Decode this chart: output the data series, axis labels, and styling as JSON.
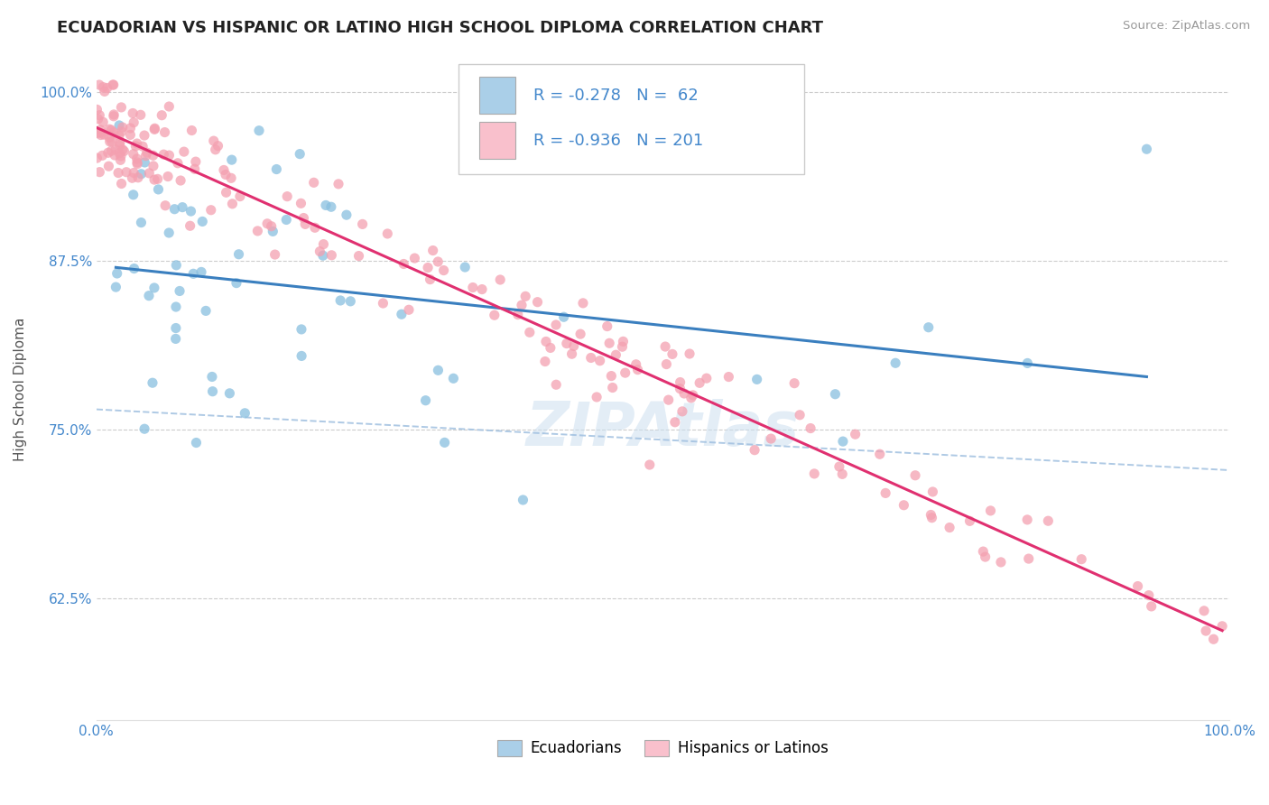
{
  "title": "ECUADORIAN VS HISPANIC OR LATINO HIGH SCHOOL DIPLOMA CORRELATION CHART",
  "source_text": "Source: ZipAtlas.com",
  "ylabel": "High School Diploma",
  "watermark": "ZIPAtlas",
  "legend_label1": "Ecuadorians",
  "legend_label2": "Hispanics or Latinos",
  "r1": -0.278,
  "n1": 62,
  "r2": -0.936,
  "n2": 201,
  "color1": "#89bfdf",
  "color2": "#f4a0b0",
  "color1_fill": "#aacfe8",
  "color2_fill": "#f9c0cc",
  "line_color1": "#3a7fbf",
  "line_color2": "#e03070",
  "dash_color": "#a0c0e0",
  "xmin": 0.0,
  "xmax": 1.0,
  "ymin": 0.535,
  "ymax": 1.025,
  "yticks": [
    0.625,
    0.75,
    0.875,
    1.0
  ],
  "ytick_labels": [
    "62.5%",
    "75.0%",
    "87.5%",
    "100.0%"
  ],
  "xticks": [
    0.0,
    0.25,
    0.5,
    0.75,
    1.0
  ],
  "title_fontsize": 13,
  "axis_label_fontsize": 11,
  "tick_fontsize": 11,
  "legend_fontsize": 13,
  "legend_value_color": "#4488cc"
}
